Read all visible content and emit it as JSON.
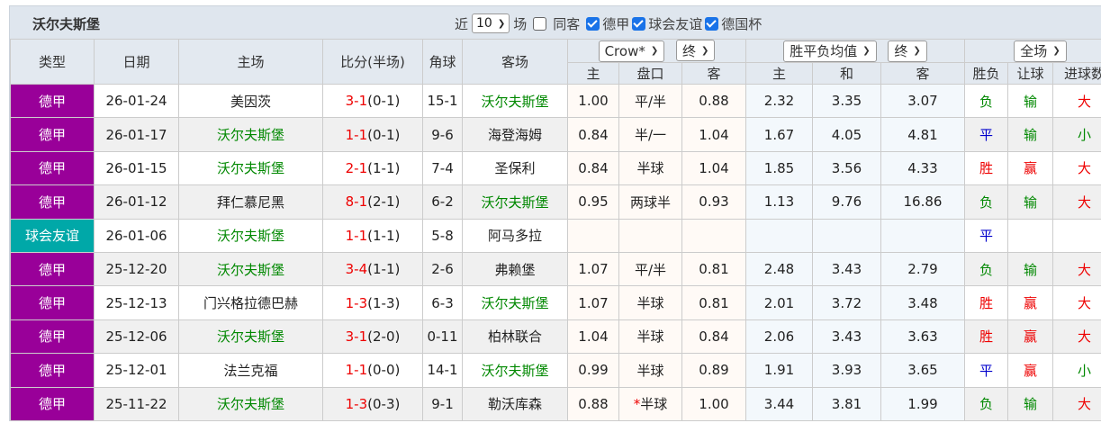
{
  "title": "沃尔夫斯堡",
  "filters": {
    "near": "近",
    "count": "10",
    "unit": "场",
    "same_away": "同客",
    "same_away_checked": false,
    "leagues": [
      {
        "label": "德甲",
        "checked": true
      },
      {
        "label": "球会友谊",
        "checked": true
      },
      {
        "label": "德国杯",
        "checked": true
      }
    ]
  },
  "selects": {
    "company": "Crow*",
    "company_time": "终",
    "avg": "胜平负均值",
    "avg_time": "终",
    "scope": "全场"
  },
  "headers": {
    "type": "类型",
    "date": "日期",
    "home": "主场",
    "score": "比分(半场)",
    "corner": "角球",
    "away": "客场",
    "sub": [
      "主",
      "盘口",
      "客",
      "主",
      "和",
      "客",
      "胜负",
      "让球",
      "进球数"
    ]
  },
  "colors": {
    "bundesliga": "#990099",
    "friendly": "#00a8a8",
    "home_team": "#008800",
    "score_ft": "#ee0000",
    "win": "#ee0000",
    "draw": "#0000cc",
    "lose": "#008800"
  },
  "rows": [
    {
      "type": "德甲",
      "date": "26-01-24",
      "home": "美因茨",
      "ft": "3-1",
      "ht": "(0-1)",
      "corner": "15-1",
      "away": "沃尔夫斯堡",
      "h": "1.00",
      "line": "平/半",
      "a": "0.88",
      "w": "2.32",
      "d": "3.35",
      "l": "3.07",
      "r1": "负",
      "r2": "输",
      "r3": "大"
    },
    {
      "type": "德甲",
      "date": "26-01-17",
      "home": "沃尔夫斯堡",
      "ft": "1-1",
      "ht": "(0-1)",
      "corner": "9-6",
      "away": "海登海姆",
      "h": "0.84",
      "line": "半/一",
      "a": "1.04",
      "w": "1.67",
      "d": "4.05",
      "l": "4.81",
      "r1": "平",
      "r2": "输",
      "r3": "小"
    },
    {
      "type": "德甲",
      "date": "26-01-15",
      "home": "沃尔夫斯堡",
      "ft": "2-1",
      "ht": "(1-1)",
      "corner": "7-4",
      "away": "圣保利",
      "h": "0.84",
      "line": "半球",
      "a": "1.04",
      "w": "1.85",
      "d": "3.56",
      "l": "4.33",
      "r1": "胜",
      "r2": "赢",
      "r3": "大"
    },
    {
      "type": "德甲",
      "date": "26-01-12",
      "home": "拜仁慕尼黑",
      "ft": "8-1",
      "ht": "(2-1)",
      "corner": "6-2",
      "away": "沃尔夫斯堡",
      "h": "0.95",
      "line": "两球半",
      "a": "0.93",
      "w": "1.13",
      "d": "9.76",
      "l": "16.86",
      "r1": "负",
      "r2": "输",
      "r3": "大"
    },
    {
      "type": "球会友谊",
      "date": "26-01-06",
      "home": "沃尔夫斯堡",
      "ft": "1-1",
      "ht": "(1-1)",
      "corner": "5-8",
      "away": "阿马多拉",
      "h": "",
      "line": "",
      "a": "",
      "w": "",
      "d": "",
      "l": "",
      "r1": "平",
      "r2": "",
      "r3": ""
    },
    {
      "type": "德甲",
      "date": "25-12-20",
      "home": "沃尔夫斯堡",
      "ft": "3-4",
      "ht": "(1-1)",
      "corner": "2-6",
      "away": "弗赖堡",
      "h": "1.07",
      "line": "平/半",
      "a": "0.81",
      "w": "2.48",
      "d": "3.43",
      "l": "2.79",
      "r1": "负",
      "r2": "输",
      "r3": "大"
    },
    {
      "type": "德甲",
      "date": "25-12-13",
      "home": "门兴格拉德巴赫",
      "ft": "1-3",
      "ht": "(1-3)",
      "corner": "6-3",
      "away": "沃尔夫斯堡",
      "h": "1.07",
      "line": "半球",
      "a": "0.81",
      "w": "2.01",
      "d": "3.72",
      "l": "3.48",
      "r1": "胜",
      "r2": "赢",
      "r3": "大"
    },
    {
      "type": "德甲",
      "date": "25-12-06",
      "home": "沃尔夫斯堡",
      "ft": "3-1",
      "ht": "(2-0)",
      "corner": "0-11",
      "away": "柏林联合",
      "h": "1.04",
      "line": "半球",
      "a": "0.84",
      "w": "2.06",
      "d": "3.43",
      "l": "3.63",
      "r1": "胜",
      "r2": "赢",
      "r3": "大"
    },
    {
      "type": "德甲",
      "date": "25-12-01",
      "home": "法兰克福",
      "ft": "1-1",
      "ht": "(0-0)",
      "corner": "14-1",
      "away": "沃尔夫斯堡",
      "h": "0.99",
      "line": "半球",
      "a": "0.89",
      "w": "1.91",
      "d": "3.93",
      "l": "3.65",
      "r1": "平",
      "r2": "赢",
      "r3": "小"
    },
    {
      "type": "德甲",
      "date": "25-11-22",
      "home": "沃尔夫斯堡",
      "ft": "1-3",
      "ht": "(0-3)",
      "corner": "9-1",
      "away": "勒沃库森",
      "h": "0.88",
      "line_mark": "*",
      "line": "半球",
      "a": "1.00",
      "w": "3.44",
      "d": "3.81",
      "l": "1.99",
      "r1": "负",
      "r2": "输",
      "r3": "大"
    }
  ]
}
